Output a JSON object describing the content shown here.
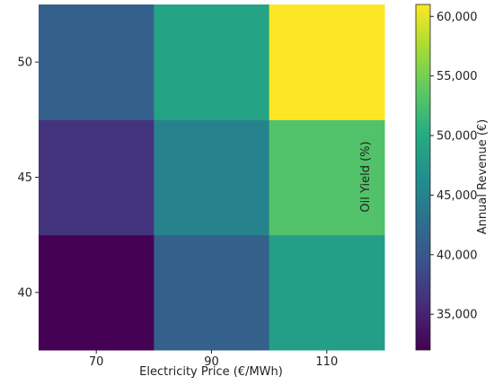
{
  "chart_data": {
    "type": "heatmap",
    "xlabel": "Electricity Price (€/MWh)",
    "ylabel": "Oil Yield (%)",
    "x_categories": [
      "70",
      "90",
      "110"
    ],
    "y_categories": [
      "40",
      "45",
      "50"
    ],
    "values": [
      [
        32000,
        41000,
        48500
      ],
      [
        36500,
        45000,
        53000
      ],
      [
        41000,
        49000,
        61000
      ]
    ],
    "colorbar": {
      "label": "Annual Revenue (€)",
      "min": 32000,
      "max": 61000,
      "colormap": "viridis",
      "ticks": [
        35000,
        40000,
        45000,
        50000,
        55000,
        60000
      ],
      "tick_labels": [
        "35,000",
        "40,000",
        "45,000",
        "50,000",
        "55,000",
        "60,000"
      ]
    }
  }
}
